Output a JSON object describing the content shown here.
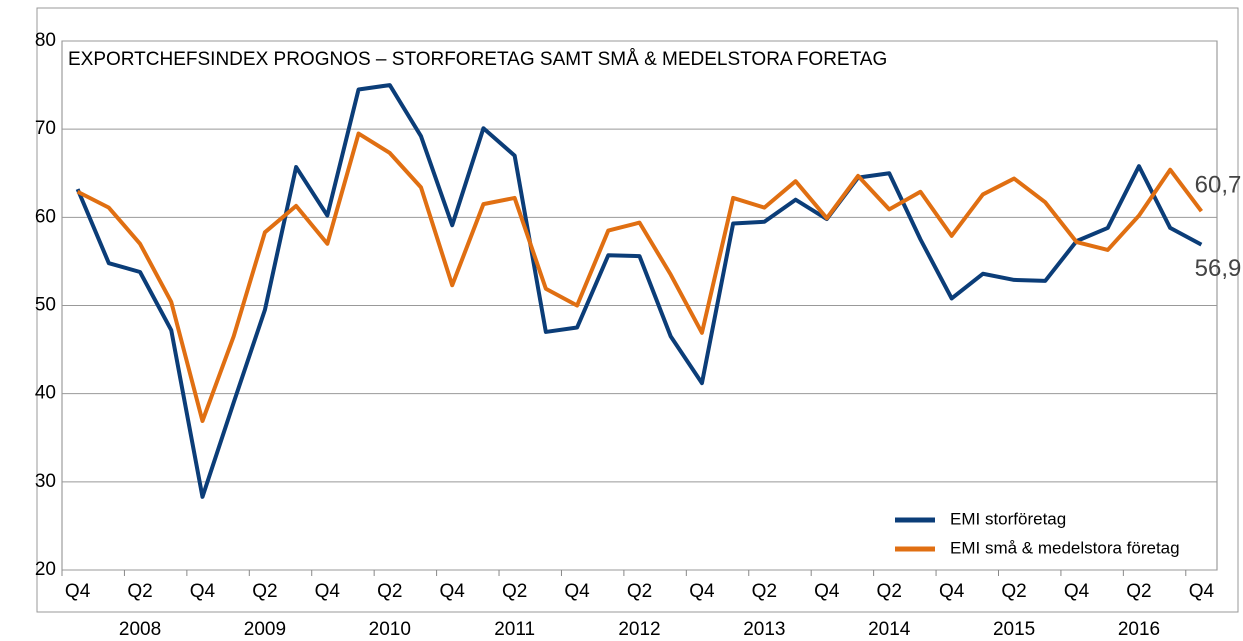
{
  "chart_data": {
    "type": "line",
    "title": "EXPORTCHEFSINDEX PROGNOS – STORFORETAG SAMT SMÅ & MEDELSTORA FORETAG",
    "categories": [
      "Q4",
      null,
      "Q2",
      null,
      "Q4",
      null,
      "Q2",
      null,
      "Q4",
      null,
      "Q2",
      null,
      "Q4",
      null,
      "Q2",
      null,
      "Q4",
      null,
      "Q2",
      null,
      "Q4",
      null,
      "Q2",
      null,
      "Q4",
      null,
      "Q2",
      null,
      "Q4",
      null,
      "Q2",
      null,
      "Q4",
      null,
      "Q2",
      null,
      "Q4"
    ],
    "years": [
      "2008",
      "2009",
      "2010",
      "2011",
      "2012",
      "2013",
      "2014",
      "2015",
      "2016"
    ],
    "series": [
      {
        "name": "EMI storföretag",
        "color": "#0b3d78",
        "values": [
          63.2,
          54.8,
          53.8,
          47.2,
          28.3,
          39,
          49.5,
          65.7,
          60.2,
          74.5,
          75,
          69.2,
          59.1,
          70.1,
          67,
          47,
          47.5,
          55.7,
          55.6,
          46.5,
          41.2,
          59.3,
          59.5,
          62,
          59.8,
          64.5,
          65,
          57.5,
          50.8,
          53.6,
          52.9,
          52.8,
          57.3,
          58.8,
          65.8,
          58.8,
          56.9
        ],
        "value_labels": {
          "36": "56,9"
        }
      },
      {
        "name": "EMI små & medelstora företag",
        "color": "#e06f12",
        "values": [
          62.9,
          61.1,
          57,
          50.4,
          36.9,
          46.5,
          58.3,
          61.3,
          57,
          69.5,
          67.3,
          63.4,
          52.3,
          61.5,
          62.2,
          51.9,
          50,
          58.5,
          59.4,
          53.5,
          46.9,
          62.2,
          61.1,
          64.1,
          59.9,
          64.7,
          60.9,
          62.9,
          57.9,
          62.6,
          64.4,
          61.7,
          57.2,
          56.3,
          60.2,
          65.4,
          60.7
        ],
        "value_labels": {
          "36": "60,7"
        }
      }
    ],
    "ylim": [
      20,
      80
    ],
    "yticks": [
      20,
      30,
      40,
      50,
      60,
      70,
      80
    ],
    "grid": true,
    "legend": "lower right"
  }
}
